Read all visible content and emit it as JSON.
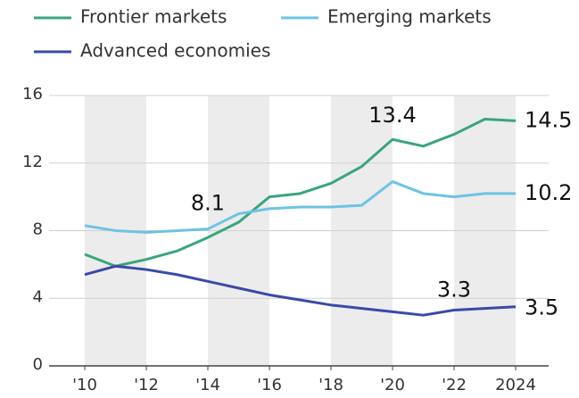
{
  "chart_data": {
    "type": "line",
    "x": [
      2010,
      2011,
      2012,
      2013,
      2014,
      2015,
      2016,
      2017,
      2018,
      2019,
      2020,
      2021,
      2022,
      2023,
      2024
    ],
    "series": [
      {
        "name": "Frontier markets",
        "color": "#3aa57d",
        "values": [
          6.6,
          5.9,
          6.3,
          6.8,
          7.6,
          8.5,
          10.0,
          10.2,
          10.8,
          11.8,
          13.4,
          13.0,
          13.7,
          14.6,
          14.5
        ]
      },
      {
        "name": "Emerging markets",
        "color": "#6ec3e4",
        "values": [
          8.3,
          8.0,
          7.9,
          8.0,
          8.1,
          9.0,
          9.3,
          9.4,
          9.4,
          9.5,
          10.9,
          10.2,
          10.0,
          10.2,
          10.2
        ]
      },
      {
        "name": "Advanced economies",
        "color": "#3a4aa8",
        "values": [
          5.4,
          5.9,
          5.7,
          5.4,
          5.0,
          4.6,
          4.2,
          3.9,
          3.6,
          3.4,
          3.2,
          3.0,
          3.3,
          3.4,
          3.5
        ]
      }
    ],
    "xlim": [
      2010,
      2024
    ],
    "xticks": [
      {
        "value": 2010,
        "label": "'10"
      },
      {
        "value": 2012,
        "label": "'12"
      },
      {
        "value": 2014,
        "label": "'14"
      },
      {
        "value": 2016,
        "label": "'16"
      },
      {
        "value": 2018,
        "label": "'18"
      },
      {
        "value": 2020,
        "label": "'20"
      },
      {
        "value": 2022,
        "label": "'22"
      },
      2024
    ],
    "ylim": [
      0,
      16
    ],
    "yticks": [
      0,
      4,
      8,
      12,
      16
    ],
    "grid": true
  }
}
